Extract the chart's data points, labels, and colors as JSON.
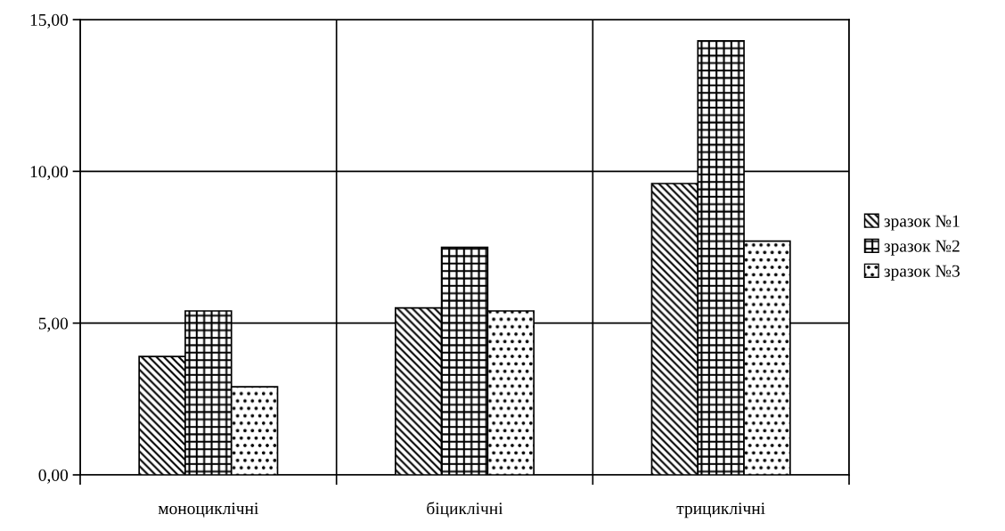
{
  "chart_data": {
    "type": "bar",
    "categories": [
      "моноциклічні",
      "біциклічні",
      "трициклічні"
    ],
    "series": [
      {
        "name": "зразок №1",
        "color": "#000000",
        "values": [
          3.9,
          5.5,
          9.6
        ]
      },
      {
        "name": "зразок №2",
        "color": "#000000",
        "values": [
          5.4,
          7.5,
          14.3
        ]
      },
      {
        "name": "зразок №3",
        "color": "#000000",
        "values": [
          2.9,
          5.4,
          7.7
        ]
      }
    ],
    "ylim": [
      0,
      15
    ],
    "yticks": [
      {
        "value": 0,
        "label": "0,00"
      },
      {
        "value": 5,
        "label": "5,00"
      },
      {
        "value": 10,
        "label": "10,00"
      },
      {
        "value": 15,
        "label": "15,00"
      }
    ],
    "grid": true,
    "legend": "right"
  }
}
